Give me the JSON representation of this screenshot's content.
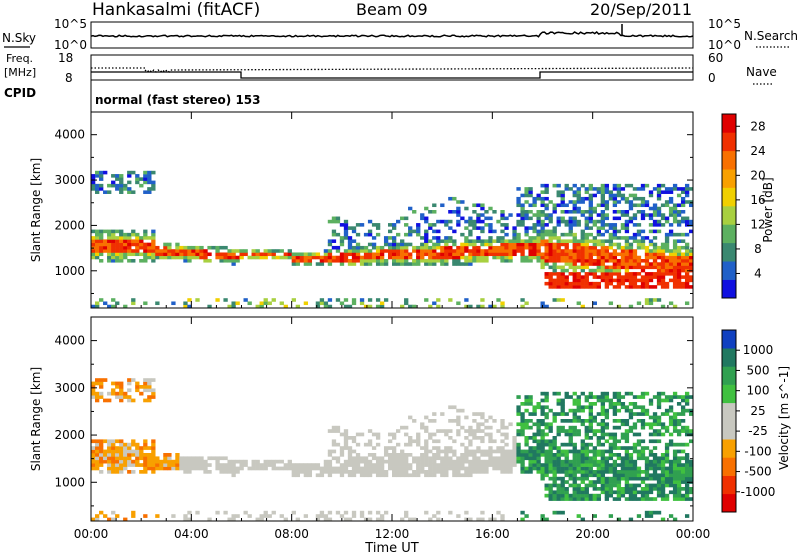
{
  "header": {
    "station": "Hankasalmi (fitACF)",
    "beam": "Beam 09",
    "date": "20/Sep/2011"
  },
  "noise_panel": {
    "left_label": "N.Sky",
    "right_label": "N.Search",
    "left_ticks": [
      "10^5",
      "10^0"
    ],
    "right_ticks": [
      "10^5",
      "10^0"
    ]
  },
  "freq_panel": {
    "left_label_line1": "Freq.",
    "left_label_line2": "[MHz]",
    "right_label": "Nave",
    "left_ticks": [
      "18",
      "8"
    ],
    "right_ticks": [
      "60",
      "0"
    ]
  },
  "cpid": {
    "label": "CPID",
    "text": "normal (fast stereo) 153"
  },
  "x_axis": {
    "label": "Time UT",
    "ticks": [
      "00:00",
      "04:00",
      "08:00",
      "12:00",
      "16:00",
      "20:00",
      "00:00"
    ]
  },
  "chart_data": [
    {
      "type": "heatmap",
      "name": "Power",
      "ylabel": "Slant Range [km]",
      "xlabel": "",
      "yticks": [
        "1000",
        "2000",
        "3000",
        "4000"
      ],
      "ylim": [
        180,
        4500
      ],
      "xlim": [
        "00:00",
        "24:00"
      ],
      "colorbar": {
        "label": "Power [dB]",
        "ticks": [
          "4",
          "8",
          "12",
          "16",
          "20",
          "24",
          "28"
        ],
        "range": [
          0,
          30
        ],
        "colors": [
          "#1010e0",
          "#2060c8",
          "#3a8870",
          "#5cb060",
          "#a8d040",
          "#f0d000",
          "#f8a000",
          "#f87000",
          "#f03000",
          "#e00000"
        ]
      }
    },
    {
      "type": "heatmap",
      "name": "Velocity",
      "ylabel": "Slant Range [km]",
      "xlabel": "Time UT",
      "yticks": [
        "1000",
        "2000",
        "3000",
        "4000"
      ],
      "ylim": [
        180,
        4500
      ],
      "xlim": [
        "00:00",
        "24:00"
      ],
      "colorbar": {
        "label": "Velocity [m s^-1]",
        "ticks": [
          "1000",
          "500",
          "100",
          "25",
          "-25",
          "-100",
          "-500",
          "-1000"
        ],
        "range": [
          -1000,
          1000
        ],
        "colors": [
          "#e00000",
          "#f03000",
          "#f87000",
          "#f8a000",
          "#c8c8c0",
          "#c8c8c0",
          "#40c040",
          "#30a050",
          "#207860",
          "#1040c0"
        ]
      }
    }
  ]
}
